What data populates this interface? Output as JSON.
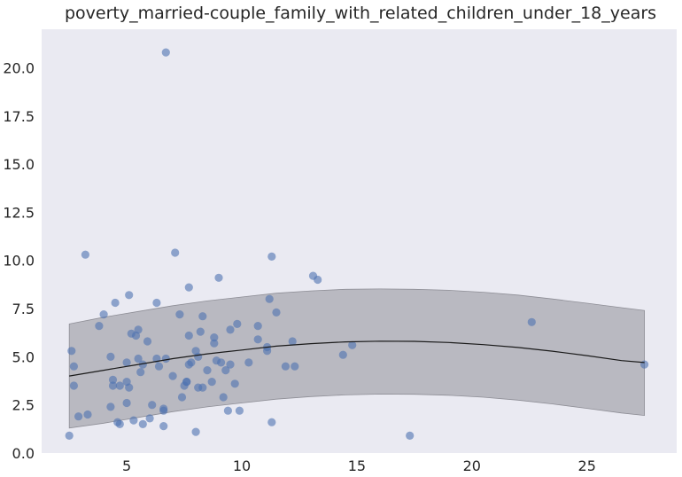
{
  "chart_data": {
    "type": "scatter",
    "title": "poverty_married-couple_family_with_related_children_under_18_years",
    "xlabel": "",
    "ylabel": "",
    "xlim": [
      1.3,
      28.9
    ],
    "ylim": [
      0,
      22
    ],
    "x_ticks": [
      5,
      10,
      15,
      20,
      25
    ],
    "y_ticks": [
      0.0,
      2.5,
      5.0,
      7.5,
      10.0,
      12.5,
      15.0,
      17.5,
      20.0
    ],
    "grid": false,
    "legend": "none",
    "colors": {
      "background": "#eaeaf2",
      "points": "#4c72b0",
      "band": "#b0b0b8",
      "fit_line": "#1a1a1a"
    },
    "points": [
      [
        2.5,
        0.9
      ],
      [
        2.6,
        5.3
      ],
      [
        2.7,
        4.5
      ],
      [
        2.7,
        3.5
      ],
      [
        2.9,
        1.9
      ],
      [
        3.2,
        10.3
      ],
      [
        3.3,
        2.0
      ],
      [
        3.8,
        6.6
      ],
      [
        4.0,
        7.2
      ],
      [
        4.3,
        5.0
      ],
      [
        4.4,
        3.8
      ],
      [
        4.4,
        3.5
      ],
      [
        4.3,
        2.4
      ],
      [
        4.5,
        7.8
      ],
      [
        4.6,
        1.6
      ],
      [
        4.7,
        3.5
      ],
      [
        4.7,
        1.5
      ],
      [
        5.0,
        4.7
      ],
      [
        5.0,
        3.7
      ],
      [
        5.1,
        3.4
      ],
      [
        5.0,
        2.6
      ],
      [
        5.1,
        8.2
      ],
      [
        5.2,
        6.2
      ],
      [
        5.3,
        1.7
      ],
      [
        5.4,
        6.1
      ],
      [
        5.5,
        6.4
      ],
      [
        5.5,
        4.9
      ],
      [
        5.6,
        4.2
      ],
      [
        5.7,
        4.6
      ],
      [
        5.7,
        1.5
      ],
      [
        5.9,
        5.8
      ],
      [
        6.0,
        1.8
      ],
      [
        6.1,
        2.5
      ],
      [
        6.3,
        7.8
      ],
      [
        6.3,
        4.9
      ],
      [
        6.4,
        4.5
      ],
      [
        6.6,
        2.3
      ],
      [
        6.6,
        2.2
      ],
      [
        6.6,
        1.4
      ],
      [
        6.7,
        20.8
      ],
      [
        6.7,
        4.9
      ],
      [
        7.0,
        4.0
      ],
      [
        7.1,
        10.4
      ],
      [
        7.3,
        7.2
      ],
      [
        7.4,
        2.9
      ],
      [
        7.5,
        3.5
      ],
      [
        7.6,
        3.7
      ],
      [
        7.6,
        3.7
      ],
      [
        7.7,
        4.6
      ],
      [
        7.7,
        6.1
      ],
      [
        7.7,
        8.6
      ],
      [
        7.8,
        4.7
      ],
      [
        8.0,
        1.1
      ],
      [
        8.0,
        5.3
      ],
      [
        8.1,
        5.0
      ],
      [
        8.1,
        3.4
      ],
      [
        8.2,
        6.3
      ],
      [
        8.3,
        7.1
      ],
      [
        8.3,
        3.4
      ],
      [
        8.5,
        4.3
      ],
      [
        8.7,
        3.7
      ],
      [
        8.8,
        5.7
      ],
      [
        8.8,
        6.0
      ],
      [
        8.9,
        4.8
      ],
      [
        9.0,
        9.1
      ],
      [
        9.1,
        4.7
      ],
      [
        9.2,
        2.9
      ],
      [
        9.3,
        4.3
      ],
      [
        9.4,
        2.2
      ],
      [
        9.5,
        6.4
      ],
      [
        9.5,
        4.6
      ],
      [
        9.7,
        3.6
      ],
      [
        9.8,
        6.7
      ],
      [
        9.9,
        2.2
      ],
      [
        10.3,
        4.7
      ],
      [
        10.7,
        6.6
      ],
      [
        10.7,
        5.9
      ],
      [
        11.1,
        5.5
      ],
      [
        11.1,
        5.3
      ],
      [
        11.2,
        8.0
      ],
      [
        11.3,
        10.2
      ],
      [
        11.3,
        1.6
      ],
      [
        11.5,
        7.3
      ],
      [
        11.9,
        4.5
      ],
      [
        12.2,
        5.8
      ],
      [
        12.3,
        4.5
      ],
      [
        13.1,
        9.2
      ],
      [
        13.3,
        9.0
      ],
      [
        14.4,
        5.1
      ],
      [
        14.8,
        5.6
      ],
      [
        17.3,
        0.9
      ],
      [
        22.6,
        6.8
      ],
      [
        27.5,
        4.6
      ]
    ],
    "fit_line": {
      "x": [
        2.5,
        4.0,
        5.5,
        7.0,
        8.5,
        10.0,
        11.5,
        13.0,
        14.5,
        16.0,
        17.5,
        19.0,
        20.5,
        22.0,
        23.5,
        25.0,
        26.5,
        27.5
      ],
      "y": [
        4.0,
        4.3,
        4.6,
        4.9,
        5.15,
        5.35,
        5.55,
        5.68,
        5.77,
        5.81,
        5.8,
        5.74,
        5.63,
        5.48,
        5.29,
        5.06,
        4.8,
        4.7
      ]
    },
    "band": {
      "x": [
        2.5,
        4.0,
        5.5,
        7.0,
        8.5,
        10.0,
        11.5,
        13.0,
        14.5,
        16.0,
        17.5,
        19.0,
        20.5,
        22.0,
        23.5,
        25.0,
        26.5,
        27.5
      ],
      "upper": [
        6.7,
        7.05,
        7.35,
        7.65,
        7.9,
        8.1,
        8.3,
        8.42,
        8.5,
        8.52,
        8.5,
        8.45,
        8.35,
        8.2,
        8.0,
        7.78,
        7.55,
        7.4
      ],
      "lower": [
        1.3,
        1.55,
        1.85,
        2.15,
        2.4,
        2.6,
        2.8,
        2.93,
        3.02,
        3.06,
        3.05,
        3.0,
        2.9,
        2.75,
        2.55,
        2.32,
        2.08,
        1.95
      ]
    }
  }
}
